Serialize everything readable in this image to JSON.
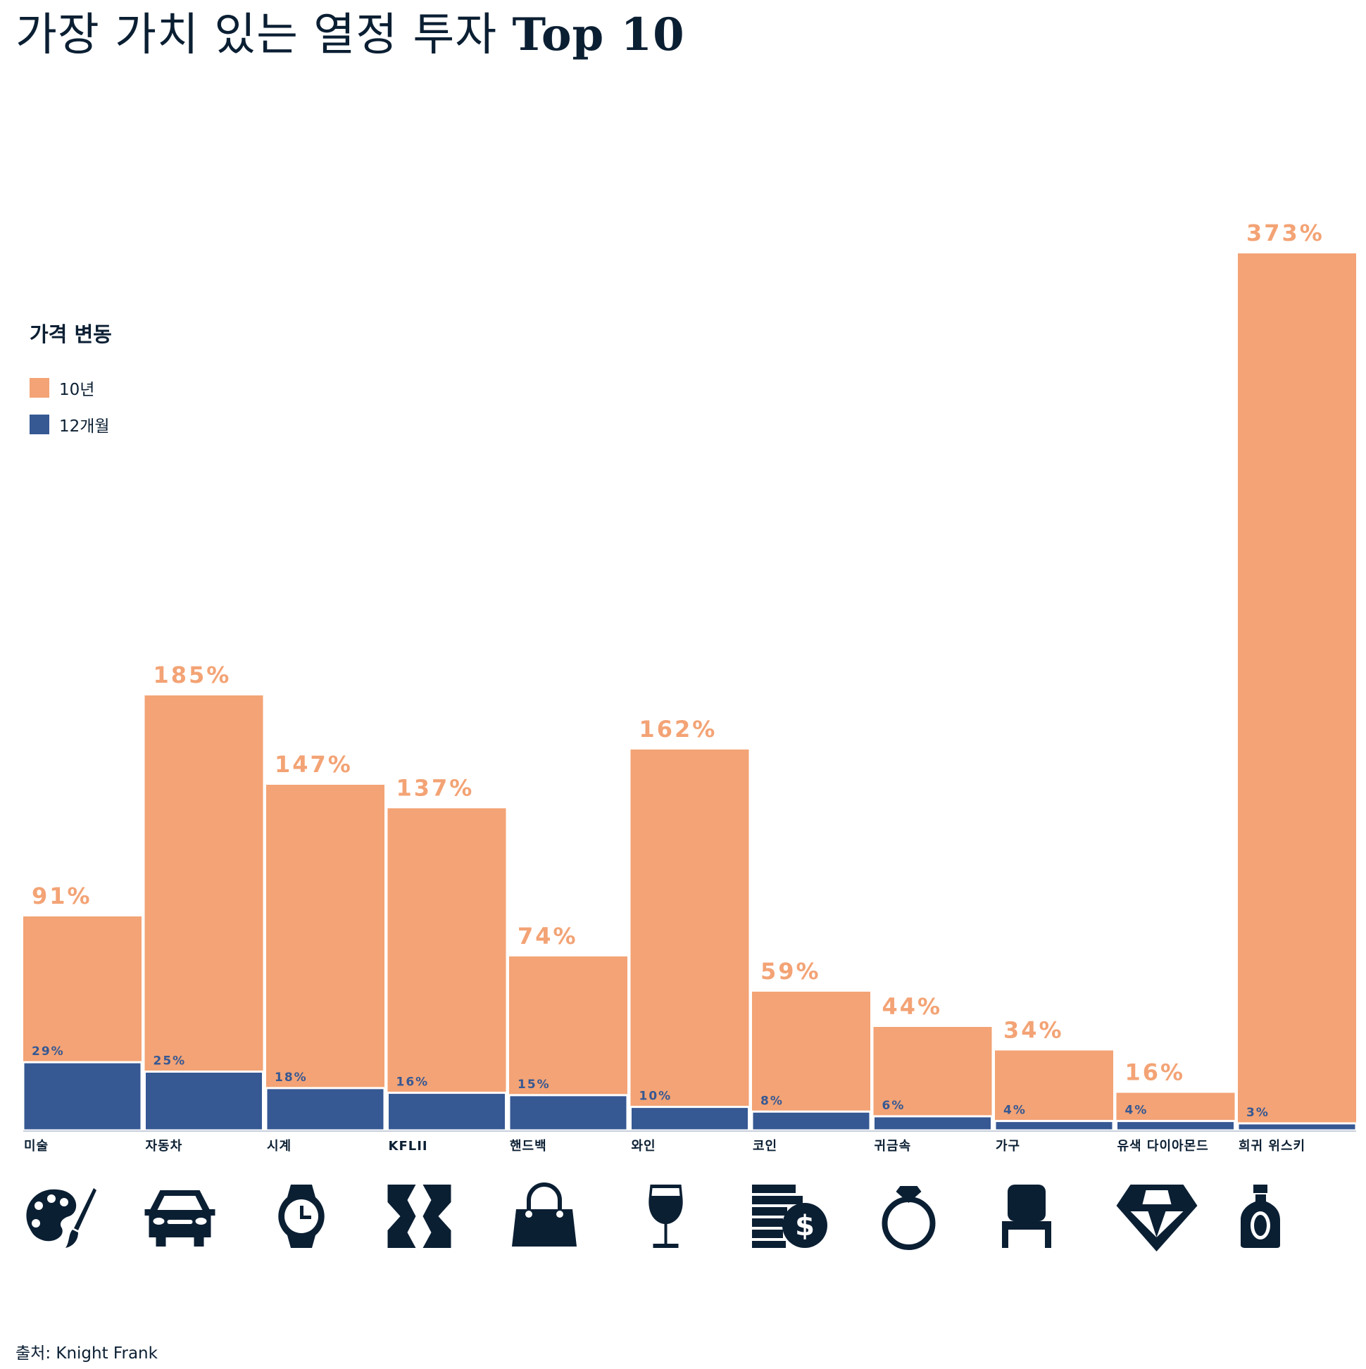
{
  "title": {
    "ko": "가장 가치 있는 열정 투자",
    "en": "Top 10"
  },
  "legend": {
    "title": "가격 변동",
    "items": [
      {
        "label": "10년",
        "color": "#f3a375"
      },
      {
        "label": "12개월",
        "color": "#365893"
      }
    ]
  },
  "source": "출처: Knight Frank",
  "chart_data": {
    "type": "bar",
    "stacking": "overlaid",
    "categories": [
      "미술",
      "자동차",
      "시계",
      "KFLII",
      "핸드백",
      "와인",
      "코인",
      "귀금속",
      "가구",
      "유색 다이아몬드",
      "희귀 위스키"
    ],
    "icons": [
      "palette-icon",
      "car-icon",
      "watch-icon",
      "kflii-icon",
      "handbag-icon",
      "wine-glass-icon",
      "coins-icon",
      "ring-icon",
      "chair-icon",
      "diamond-icon",
      "whisky-bottle-icon"
    ],
    "series": [
      {
        "name": "10년",
        "color": "#f3a375",
        "values": [
          91,
          185,
          147,
          137,
          74,
          162,
          59,
          44,
          34,
          16,
          373
        ],
        "labels": [
          "91%",
          "185%",
          "147%",
          "137%",
          "74%",
          "162%",
          "59%",
          "44%",
          "34%",
          "16%",
          "373%"
        ]
      },
      {
        "name": "12개월",
        "color": "#365893",
        "values": [
          29,
          25,
          18,
          16,
          15,
          10,
          8,
          6,
          4,
          4,
          3
        ],
        "labels": [
          "29%",
          "25%",
          "18%",
          "16%",
          "15%",
          "10%",
          "8%",
          "6%",
          "4%",
          "4%",
          "3%"
        ]
      }
    ],
    "ylim": [
      0,
      373
    ],
    "grid": false,
    "legend_position": "left"
  }
}
